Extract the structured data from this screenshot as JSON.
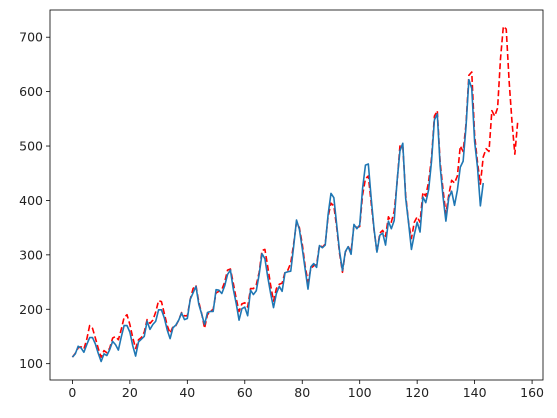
{
  "chart_data": {
    "type": "line",
    "title": "",
    "xlabel": "",
    "ylabel": "",
    "xlim": [
      -7.8,
      163.8
    ],
    "ylim": [
      70,
      750
    ],
    "x_ticks": [
      0,
      20,
      40,
      60,
      80,
      100,
      120,
      140,
      160
    ],
    "x_tick_labels": [
      "0",
      "20",
      "40",
      "60",
      "80",
      "100",
      "120",
      "140",
      "160"
    ],
    "y_ticks": [
      100,
      200,
      300,
      400,
      500,
      600,
      700
    ],
    "y_tick_labels": [
      "100",
      "200",
      "300",
      "400",
      "500",
      "600",
      "700"
    ],
    "grid": false,
    "legend": "none",
    "series": [
      {
        "style": "solid",
        "color": "#1f77b4",
        "x_start": 0,
        "values": [
          112,
          118,
          132,
          129,
          121,
          135,
          148,
          148,
          136,
          119,
          104,
          118,
          115,
          126,
          141,
          135,
          125,
          149,
          170,
          170,
          158,
          133,
          114,
          140,
          145,
          150,
          178,
          163,
          172,
          178,
          199,
          199,
          184,
          162,
          146,
          166,
          171,
          180,
          193,
          181,
          183,
          218,
          230,
          242,
          209,
          191,
          172,
          194,
          196,
          196,
          236,
          235,
          229,
          243,
          264,
          272,
          237,
          211,
          180,
          201,
          204,
          188,
          235,
          227,
          234,
          264,
          302,
          293,
          259,
          229,
          203,
          229,
          242,
          233,
          267,
          269,
          270,
          315,
          364,
          347,
          312,
          274,
          237,
          278,
          284,
          277,
          317,
          313,
          318,
          374,
          413,
          405,
          355,
          306,
          271,
          306,
          315,
          301,
          356,
          348,
          355,
          422,
          465,
          467,
          404,
          347,
          305,
          336,
          340,
          318,
          362,
          348,
          363,
          435,
          491,
          505,
          404,
          359,
          310,
          337,
          360,
          342,
          406,
          396,
          420,
          472,
          548,
          559,
          463,
          407,
          362,
          405,
          417,
          391,
          419,
          461,
          472,
          535,
          622,
          606,
          508,
          461,
          390,
          432
        ]
      },
      {
        "style": "dashed",
        "color": "#ff0000",
        "x_start": 0,
        "values": [
          112,
          119,
          129,
          131,
          127,
          145,
          170,
          165,
          147,
          128,
          112,
          124,
          120,
          129,
          147,
          150,
          144,
          163,
          185,
          190,
          172,
          148,
          128,
          144,
          148,
          158,
          181,
          174,
          180,
          195,
          216,
          214,
          192,
          170,
          156,
          168,
          170,
          180,
          194,
          188,
          188,
          218,
          238,
          244,
          213,
          192,
          165,
          190,
          196,
          200,
          230,
          233,
          236,
          250,
          272,
          274,
          248,
          220,
          196,
          210,
          212,
          204,
          238,
          238,
          245,
          268,
          308,
          310,
          278,
          244,
          215,
          238,
          246,
          248,
          268,
          272,
          285,
          320,
          360,
          350,
          320,
          280,
          250,
          275,
          280,
          282,
          318,
          314,
          320,
          370,
          395,
          390,
          350,
          302,
          268,
          305,
          315,
          306,
          355,
          350,
          352,
          410,
          440,
          445,
          395,
          345,
          305,
          340,
          345,
          334,
          370,
          360,
          380,
          432,
          500,
          500,
          410,
          360,
          330,
          360,
          370,
          360,
          415,
          408,
          435,
          478,
          555,
          565,
          470,
          420,
          375,
          410,
          437,
          432,
          445,
          500,
          490,
          540,
          630,
          636,
          520,
          470,
          430,
          480,
          495,
          490,
          565,
          555,
          570,
          660,
          720,
          715,
          620,
          545,
          485,
          545
        ]
      }
    ]
  }
}
